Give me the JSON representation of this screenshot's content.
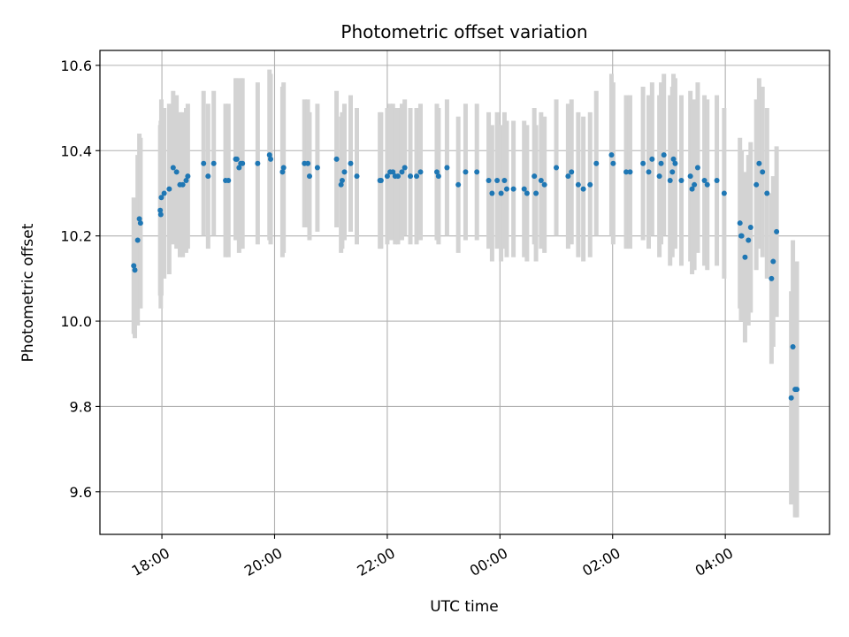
{
  "chart_data": {
    "type": "scatter",
    "title": "Photometric offset variation",
    "xlabel": "UTC time",
    "ylabel": "Photometric offset",
    "x_unit": "hours of UTC time, continuing past midnight (24 = 00:00, 26 = 02:00)",
    "xlim": [
      16.9,
      29.85
    ],
    "ylim": [
      9.5,
      10.635
    ],
    "x_ticks": [
      {
        "value": 18,
        "label": "18:00"
      },
      {
        "value": 20,
        "label": "20:00"
      },
      {
        "value": 22,
        "label": "22:00"
      },
      {
        "value": 24,
        "label": "00:00"
      },
      {
        "value": 26,
        "label": "02:00"
      },
      {
        "value": 28,
        "label": "04:00"
      }
    ],
    "y_ticks": [
      {
        "value": 9.6,
        "label": "9.6"
      },
      {
        "value": 9.8,
        "label": "9.8"
      },
      {
        "value": 10.0,
        "label": "10.0"
      },
      {
        "value": 10.2,
        "label": "10.2"
      },
      {
        "value": 10.4,
        "label": "10.4"
      },
      {
        "value": 10.6,
        "label": "10.6"
      }
    ],
    "grid": true,
    "colors": {
      "points": "#1f77b4",
      "error_bars": "#d3d3d3",
      "grid": "#b0b0b0"
    },
    "series": [
      {
        "x": [
          17.5,
          17.52,
          17.57,
          17.6,
          17.62,
          17.97,
          17.98,
          17.99,
          18.04,
          18.13,
          18.2,
          18.26,
          18.32,
          18.37,
          18.43,
          18.46,
          18.74,
          18.82,
          18.92,
          19.13,
          19.18,
          19.31,
          19.33,
          19.37,
          19.4,
          19.43,
          19.7,
          19.91,
          19.93,
          20.14,
          20.16,
          20.53,
          20.59,
          20.62,
          20.76,
          21.1,
          21.18,
          21.2,
          21.24,
          21.35,
          21.46,
          21.87,
          21.89,
          22.0,
          22.05,
          22.1,
          22.14,
          22.19,
          22.26,
          22.31,
          22.41,
          22.52,
          22.59,
          22.88,
          22.91,
          23.06,
          23.26,
          23.39,
          23.59,
          23.8,
          23.86,
          23.95,
          24.02,
          24.08,
          24.12,
          24.24,
          24.43,
          24.48,
          24.61,
          24.64,
          24.73,
          24.79,
          25.0,
          25.21,
          25.27,
          25.39,
          25.48,
          25.6,
          25.71,
          25.98,
          26.01,
          26.24,
          26.31,
          26.54,
          26.64,
          26.7,
          26.83,
          26.86,
          26.91,
          27.02,
          27.06,
          27.08,
          27.11,
          27.22,
          27.38,
          27.41,
          27.45,
          27.51,
          27.63,
          27.68,
          27.85,
          27.98,
          28.26,
          28.28,
          28.29,
          28.35,
          28.41,
          28.45,
          28.55,
          28.6,
          28.66,
          28.74,
          28.82,
          28.85,
          28.91
        ],
        "y": [
          10.13,
          10.12,
          10.19,
          10.24,
          10.23,
          10.26,
          10.25,
          10.29,
          10.3,
          10.31,
          10.36,
          10.35,
          10.32,
          10.32,
          10.33,
          10.34,
          10.37,
          10.34,
          10.37,
          10.33,
          10.33,
          10.38,
          10.38,
          10.36,
          10.37,
          10.37,
          10.37,
          10.39,
          10.38,
          10.35,
          10.36,
          10.37,
          10.37,
          10.34,
          10.36,
          10.38,
          10.32,
          10.33,
          10.35,
          10.37,
          10.34,
          10.33,
          10.33,
          10.34,
          10.35,
          10.35,
          10.34,
          10.34,
          10.35,
          10.36,
          10.34,
          10.34,
          10.35,
          10.35,
          10.34,
          10.36,
          10.32,
          10.35,
          10.35,
          10.33,
          10.3,
          10.33,
          10.3,
          10.33,
          10.31,
          10.31,
          10.31,
          10.3,
          10.34,
          10.3,
          10.33,
          10.32,
          10.36,
          10.34,
          10.35,
          10.32,
          10.31,
          10.32,
          10.37,
          10.39,
          10.37,
          10.35,
          10.35,
          10.37,
          10.35,
          10.38,
          10.34,
          10.37,
          10.39,
          10.33,
          10.35,
          10.38,
          10.37,
          10.33,
          10.34,
          10.31,
          10.32,
          10.36,
          10.33,
          10.32,
          10.33,
          10.3,
          10.23,
          10.2,
          10.2,
          10.15,
          10.19,
          10.22,
          10.32,
          10.37,
          10.35,
          10.3,
          10.1,
          10.14,
          10.21
        ],
        "yerr": [
          0.16,
          0.16,
          0.2,
          0.2,
          0.2,
          0.2,
          0.22,
          0.23,
          0.2,
          0.2,
          0.18,
          0.18,
          0.17,
          0.17,
          0.17,
          0.17,
          0.17,
          0.17,
          0.17,
          0.18,
          0.18,
          0.19,
          0.19,
          0.2,
          0.2,
          0.2,
          0.19,
          0.2,
          0.2,
          0.2,
          0.2,
          0.15,
          0.15,
          0.15,
          0.15,
          0.16,
          0.16,
          0.16,
          0.16,
          0.16,
          0.16,
          0.16,
          0.16,
          0.16,
          0.16,
          0.16,
          0.16,
          0.16,
          0.16,
          0.16,
          0.16,
          0.16,
          0.16,
          0.16,
          0.16,
          0.16,
          0.16,
          0.16,
          0.16,
          0.16,
          0.16,
          0.16,
          0.16,
          0.16,
          0.16,
          0.16,
          0.16,
          0.16,
          0.16,
          0.16,
          0.16,
          0.16,
          0.16,
          0.17,
          0.17,
          0.17,
          0.17,
          0.17,
          0.17,
          0.19,
          0.19,
          0.18,
          0.18,
          0.18,
          0.18,
          0.18,
          0.19,
          0.19,
          0.19,
          0.2,
          0.2,
          0.2,
          0.2,
          0.2,
          0.2,
          0.2,
          0.2,
          0.2,
          0.2,
          0.2,
          0.2,
          0.2,
          0.2,
          0.2,
          0.2,
          0.2,
          0.2,
          0.2,
          0.2,
          0.2,
          0.2,
          0.2,
          0.2,
          0.2,
          0.2
        ],
        "point_color": "#1f77b4",
        "error_bar_color": "#d3d3d3"
      },
      {
        "x": [
          29.17,
          29.2,
          29.24,
          29.27
        ],
        "y": [
          9.82,
          9.94,
          9.84,
          9.84
        ],
        "yerr": [
          0.25,
          0.25,
          0.3,
          0.3
        ],
        "point_color": "#1f77b4",
        "error_bar_color": "#d3d3d3"
      }
    ]
  }
}
